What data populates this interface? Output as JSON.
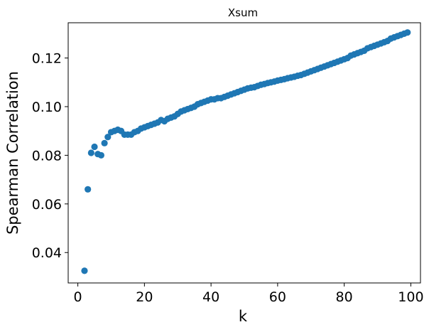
{
  "chart_data": {
    "type": "scatter",
    "title": "Xsum",
    "xlabel": "k",
    "ylabel": "Spearman Correlation",
    "xlim": [
      -2.9,
      102.9
    ],
    "ylim": [
      0.0275,
      0.1345
    ],
    "xticks": [
      0,
      20,
      40,
      60,
      80,
      100
    ],
    "xtick_labels": [
      "0",
      "20",
      "40",
      "60",
      "80",
      "100"
    ],
    "yticks": [
      0.04,
      0.06,
      0.08,
      0.1,
      0.12
    ],
    "ytick_labels": [
      "0.04",
      "0.06",
      "0.08",
      "0.10",
      "0.12"
    ],
    "grid": false,
    "series": [
      {
        "color": "#1f77b4",
        "x": [
          2,
          3,
          4,
          5,
          6,
          7,
          8,
          9,
          10,
          11,
          12,
          13,
          14,
          15,
          16,
          17,
          18,
          19,
          20,
          21,
          22,
          23,
          24,
          25,
          26,
          27,
          28,
          29,
          30,
          31,
          32,
          33,
          34,
          35,
          36,
          37,
          38,
          39,
          40,
          41,
          42,
          43,
          44,
          45,
          46,
          47,
          48,
          49,
          50,
          51,
          52,
          53,
          54,
          55,
          56,
          57,
          58,
          59,
          60,
          61,
          62,
          63,
          64,
          65,
          66,
          67,
          68,
          69,
          70,
          71,
          72,
          73,
          74,
          75,
          76,
          77,
          78,
          79,
          80,
          81,
          82,
          83,
          84,
          85,
          86,
          87,
          88,
          89,
          90,
          91,
          92,
          93,
          94,
          95,
          96,
          97,
          98,
          99
        ],
        "y": [
          0.0325,
          0.066,
          0.081,
          0.0835,
          0.0805,
          0.08,
          0.085,
          0.0875,
          0.0895,
          0.09,
          0.0905,
          0.09,
          0.0885,
          0.0885,
          0.0885,
          0.0895,
          0.09,
          0.091,
          0.0915,
          0.092,
          0.0925,
          0.093,
          0.0935,
          0.0945,
          0.094,
          0.095,
          0.0955,
          0.096,
          0.097,
          0.098,
          0.0985,
          0.099,
          0.0995,
          0.1,
          0.101,
          0.1015,
          0.102,
          0.1025,
          0.103,
          0.103,
          0.1035,
          0.1035,
          0.104,
          0.1045,
          0.105,
          0.1055,
          0.106,
          0.1065,
          0.107,
          0.1075,
          0.1078,
          0.108,
          0.1085,
          0.109,
          0.1093,
          0.1097,
          0.11,
          0.1103,
          0.1107,
          0.111,
          0.1113,
          0.1117,
          0.112,
          0.1123,
          0.1127,
          0.113,
          0.1135,
          0.114,
          0.1145,
          0.115,
          0.1155,
          0.116,
          0.1165,
          0.117,
          0.1175,
          0.118,
          0.1185,
          0.119,
          0.1195,
          0.12,
          0.121,
          0.1215,
          0.122,
          0.1225,
          0.123,
          0.124,
          0.1245,
          0.125,
          0.1255,
          0.126,
          0.1265,
          0.127,
          0.128,
          0.1285,
          0.129,
          0.1295,
          0.13,
          0.1305
        ]
      }
    ]
  }
}
